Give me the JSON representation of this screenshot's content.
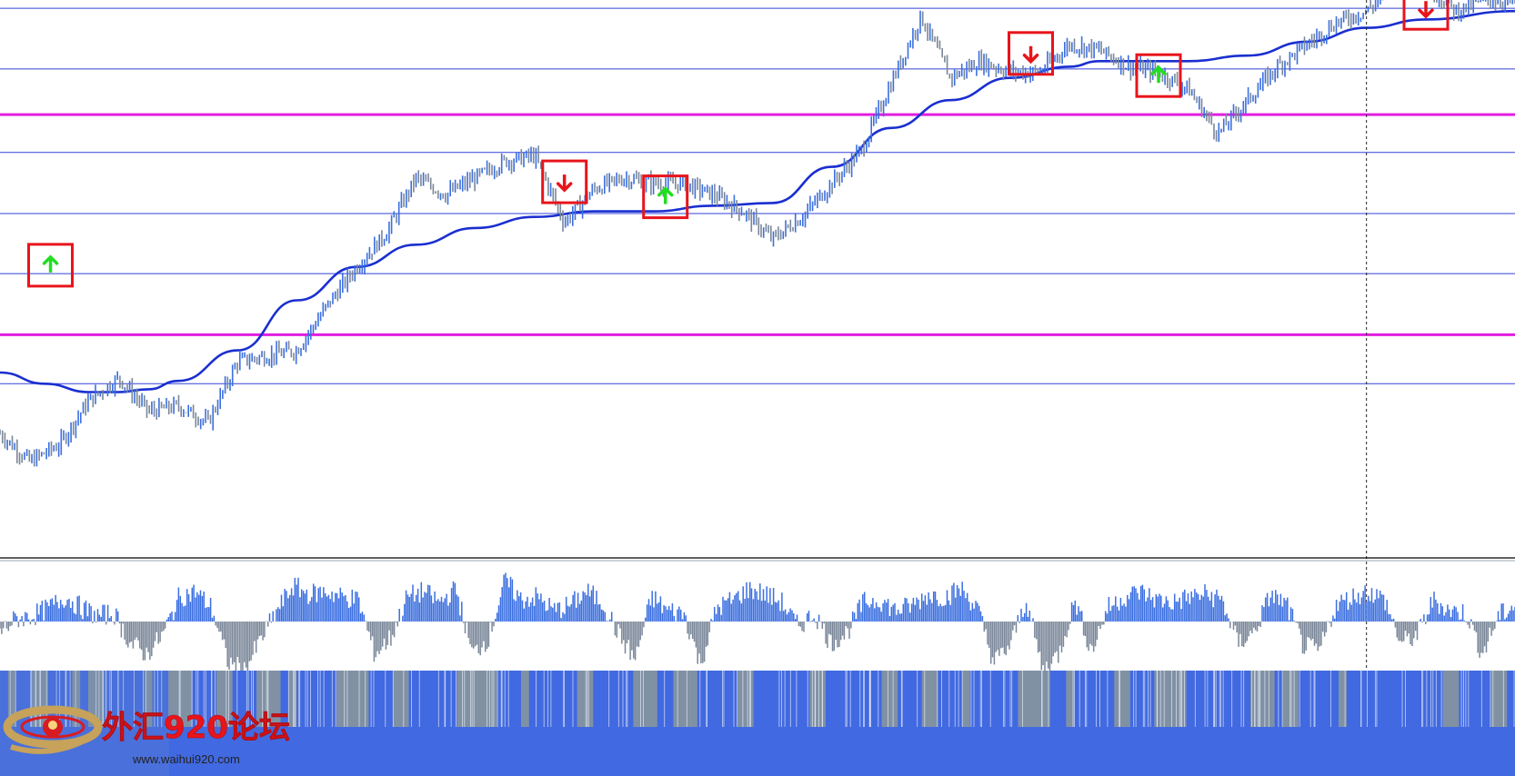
{
  "chart_data": {
    "type": "line",
    "title": "",
    "xlabel": "",
    "ylabel": "",
    "y_domain": [
      0,
      100
    ],
    "grid": false,
    "price_series": {
      "up_color": "#3b6fe0",
      "down_color": "#7a8799",
      "trend": [
        [
          0,
          22
        ],
        [
          1,
          17
        ],
        [
          2,
          20
        ],
        [
          3,
          28
        ],
        [
          4,
          32
        ],
        [
          5,
          26
        ],
        [
          6,
          27
        ],
        [
          7,
          24
        ],
        [
          8,
          35
        ],
        [
          9,
          36
        ],
        [
          10,
          37
        ],
        [
          11,
          45
        ],
        [
          12,
          52
        ],
        [
          13,
          58
        ],
        [
          14,
          68
        ],
        [
          15,
          65
        ],
        [
          16,
          68
        ],
        [
          17,
          71
        ],
        [
          18,
          72
        ],
        [
          19,
          60
        ],
        [
          20,
          66
        ],
        [
          21,
          68
        ],
        [
          22,
          67
        ],
        [
          23,
          67
        ],
        [
          24,
          65
        ],
        [
          25,
          62
        ],
        [
          26,
          57
        ],
        [
          27,
          61
        ],
        [
          28,
          67
        ],
        [
          29,
          73
        ],
        [
          30,
          85
        ],
        [
          31,
          97
        ],
        [
          32,
          86
        ],
        [
          33,
          89
        ],
        [
          34,
          87
        ],
        [
          35,
          87
        ],
        [
          36,
          92
        ],
        [
          37,
          91
        ],
        [
          38,
          88
        ],
        [
          39,
          87
        ],
        [
          40,
          84
        ],
        [
          41,
          76
        ],
        [
          42,
          82
        ],
        [
          43,
          88
        ],
        [
          44,
          92
        ],
        [
          45,
          96
        ],
        [
          46,
          98
        ],
        [
          47,
          103
        ],
        [
          48,
          103
        ],
        [
          49,
          98
        ],
        [
          50,
          100
        ],
        [
          51,
          100
        ]
      ]
    },
    "moving_average": {
      "color": "#1a2fd0",
      "points": [
        [
          0,
          33
        ],
        [
          1.5,
          31
        ],
        [
          3,
          29.5
        ],
        [
          4,
          29.5
        ],
        [
          5,
          30
        ],
        [
          6,
          31.5
        ],
        [
          8,
          37
        ],
        [
          10,
          46
        ],
        [
          12,
          52
        ],
        [
          14,
          56
        ],
        [
          16,
          59
        ],
        [
          18,
          61
        ],
        [
          20,
          62
        ],
        [
          22,
          62
        ],
        [
          24,
          63
        ],
        [
          26,
          63.5
        ],
        [
          28,
          70
        ],
        [
          30,
          77
        ],
        [
          32,
          82
        ],
        [
          34,
          86
        ],
        [
          36,
          88
        ],
        [
          37,
          89
        ],
        [
          38,
          89
        ],
        [
          40,
          89
        ],
        [
          42,
          90
        ],
        [
          44,
          92.5
        ],
        [
          46,
          95
        ],
        [
          48,
          96.5
        ],
        [
          51,
          98
        ]
      ]
    },
    "horizontal_levels": [
      {
        "value": 98.5,
        "color": "#3340d8",
        "style": "thin"
      },
      {
        "value": 87.6,
        "color": "#3340d8",
        "style": "thin"
      },
      {
        "value": 79.4,
        "color": "#e21ddf",
        "style": "thick"
      },
      {
        "value": 72.6,
        "color": "#3340d8",
        "style": "thin"
      },
      {
        "value": 61.6,
        "color": "#3340d8",
        "style": "thin"
      },
      {
        "value": 50.8,
        "color": "#3340d8",
        "style": "thin"
      },
      {
        "value": 39.8,
        "color": "#e21ddf",
        "style": "thick"
      },
      {
        "value": 31.0,
        "color": "#3340d8",
        "style": "thin"
      }
    ],
    "signals": [
      {
        "direction": "up",
        "x": 1.7,
        "value": 52.3
      },
      {
        "direction": "down",
        "x": 19.0,
        "value": 67.3
      },
      {
        "direction": "up",
        "x": 22.4,
        "value": 64.6
      },
      {
        "direction": "down",
        "x": 34.7,
        "value": 90.4
      },
      {
        "direction": "up",
        "x": 39.0,
        "value": 86.4
      },
      {
        "direction": "down",
        "x": 48.0,
        "value": 98.5
      }
    ],
    "signal_colors": {
      "box": "#e8141b",
      "up_arrow": "#22dd22",
      "down_arrow": "#e8141b"
    },
    "cursor_x": 46.0,
    "histogram": {
      "positive_color": "#3b6fe0",
      "negative_color": "#7a8799",
      "values": [
        -4,
        1,
        2,
        5,
        9,
        5,
        2,
        3,
        -8,
        -12,
        -5,
        9,
        11,
        5,
        -15,
        -18,
        -7,
        4,
        13,
        10,
        11,
        9,
        8,
        -12,
        -6,
        9,
        11,
        7,
        12,
        -12,
        -6,
        15,
        8,
        9,
        4,
        6,
        11,
        7,
        -5,
        -14,
        9,
        4,
        3,
        -16,
        5,
        8,
        12,
        10,
        7,
        -2,
        3,
        -8,
        -4,
        7,
        8,
        4,
        6,
        10,
        9,
        12,
        5,
        -15,
        -9,
        8,
        -18,
        -12,
        8,
        -11,
        5,
        9,
        11,
        8,
        7,
        9,
        10,
        8,
        -8,
        -4,
        10,
        6,
        -9,
        -11,
        6,
        9,
        11,
        8,
        -8,
        -5,
        8,
        4,
        3,
        -12,
        2,
        6
      ]
    },
    "regime_strip": {
      "blue": "#4169e1",
      "gray": "#8191a4",
      "states": "BGBBGGBBBGBGGBBBBBGBBGGGBBBGGBBBGGGBGBBBBBGGGGBBBGGBBBBBBGGGGGBBBGBBBBBBGGBBBBBGGGBBGGGBBBBBGGBBBBBBBGGBBBBBBBGGBBBGGBBBGBBBBBBGGGGBBGBBBBBGGBBBGGGGBBBBBBBBGGGBGGBBBBBGBBBBBBBBBBBBGGBBBBGGB"
    }
  },
  "watermark": {
    "title": "外汇920论坛",
    "url": "www.waihui920.com",
    "logo_colors": {
      "ring": "#c6a25a",
      "center": "#d81b20",
      "bar": "#4169e1",
      "panel": "#6d8fc4"
    }
  }
}
